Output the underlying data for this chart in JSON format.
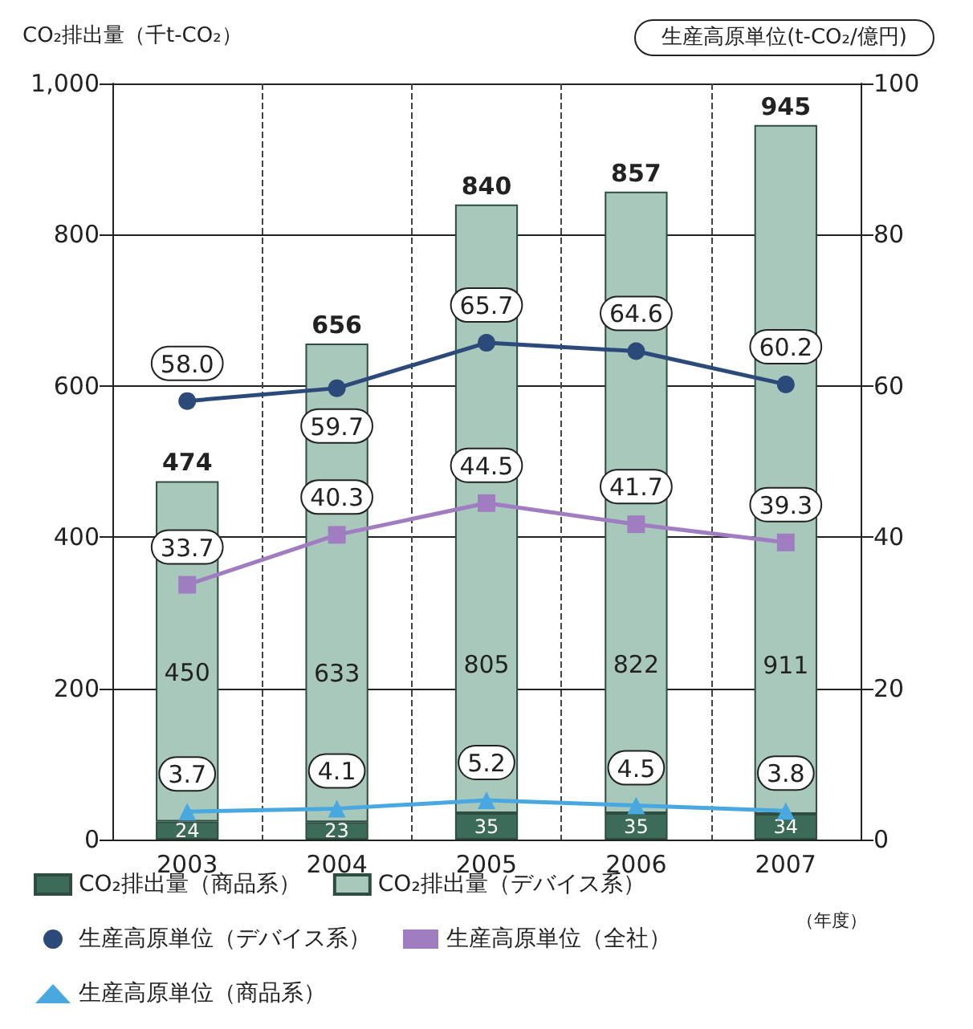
{
  "chart_data": {
    "type": "bar",
    "stacked": true,
    "ylabel": "CO₂排出量（千t-CO₂）",
    "y2label": "生産高原単位(t-CO₂/億円)",
    "categories": [
      "2003",
      "2004",
      "2005",
      "2006",
      "2007"
    ],
    "series": [
      {
        "name": "CO₂排出量（商品系）",
        "color": "#3d6b5a",
        "values": [
          24,
          23,
          35,
          35,
          34
        ]
      },
      {
        "name": "CO₂排出量（デバイス系）",
        "color": "#a9c8bc",
        "values": [
          450,
          633,
          805,
          822,
          911
        ]
      },
      {
        "name": "生産高原単位（デバイス系）",
        "type": "line",
        "axis": "y2",
        "color": "#2b4a7a",
        "marker": "circle",
        "values": [
          58.0,
          59.7,
          65.7,
          64.6,
          60.2
        ],
        "value_labels": [
          "58.0",
          "59.7",
          "65.7",
          "64.6",
          "60.2"
        ]
      },
      {
        "name": "生産高原単位（全社）",
        "type": "line",
        "axis": "y2",
        "color": "#a07cc0",
        "marker": "square",
        "values": [
          33.7,
          40.3,
          44.5,
          41.7,
          39.3
        ],
        "value_labels": [
          "33.7",
          "40.3",
          "44.5",
          "41.7",
          "39.3"
        ]
      },
      {
        "name": "生産高原単位（商品系）",
        "type": "line",
        "axis": "y2",
        "color": "#4aa8e0",
        "marker": "triangle",
        "values": [
          3.7,
          4.1,
          5.2,
          4.5,
          3.8
        ],
        "value_labels": [
          "3.7",
          "4.1",
          "5.2",
          "4.5",
          "3.8"
        ]
      }
    ],
    "data_labels": true,
    "totals": [
      "474",
      "656",
      "840",
      "857",
      "945"
    ],
    "ylim": [
      0,
      1000
    ],
    "yticks": [
      0,
      200,
      400,
      600,
      800,
      {
        "value": 1000,
        "label": "1,000"
      }
    ],
    "y2lim": [
      0,
      100
    ],
    "y2ticks": [
      0,
      20,
      40,
      60,
      80,
      100
    ],
    "grid": true,
    "legend": "bottom",
    "annotations": [
      "（年度）"
    ]
  }
}
